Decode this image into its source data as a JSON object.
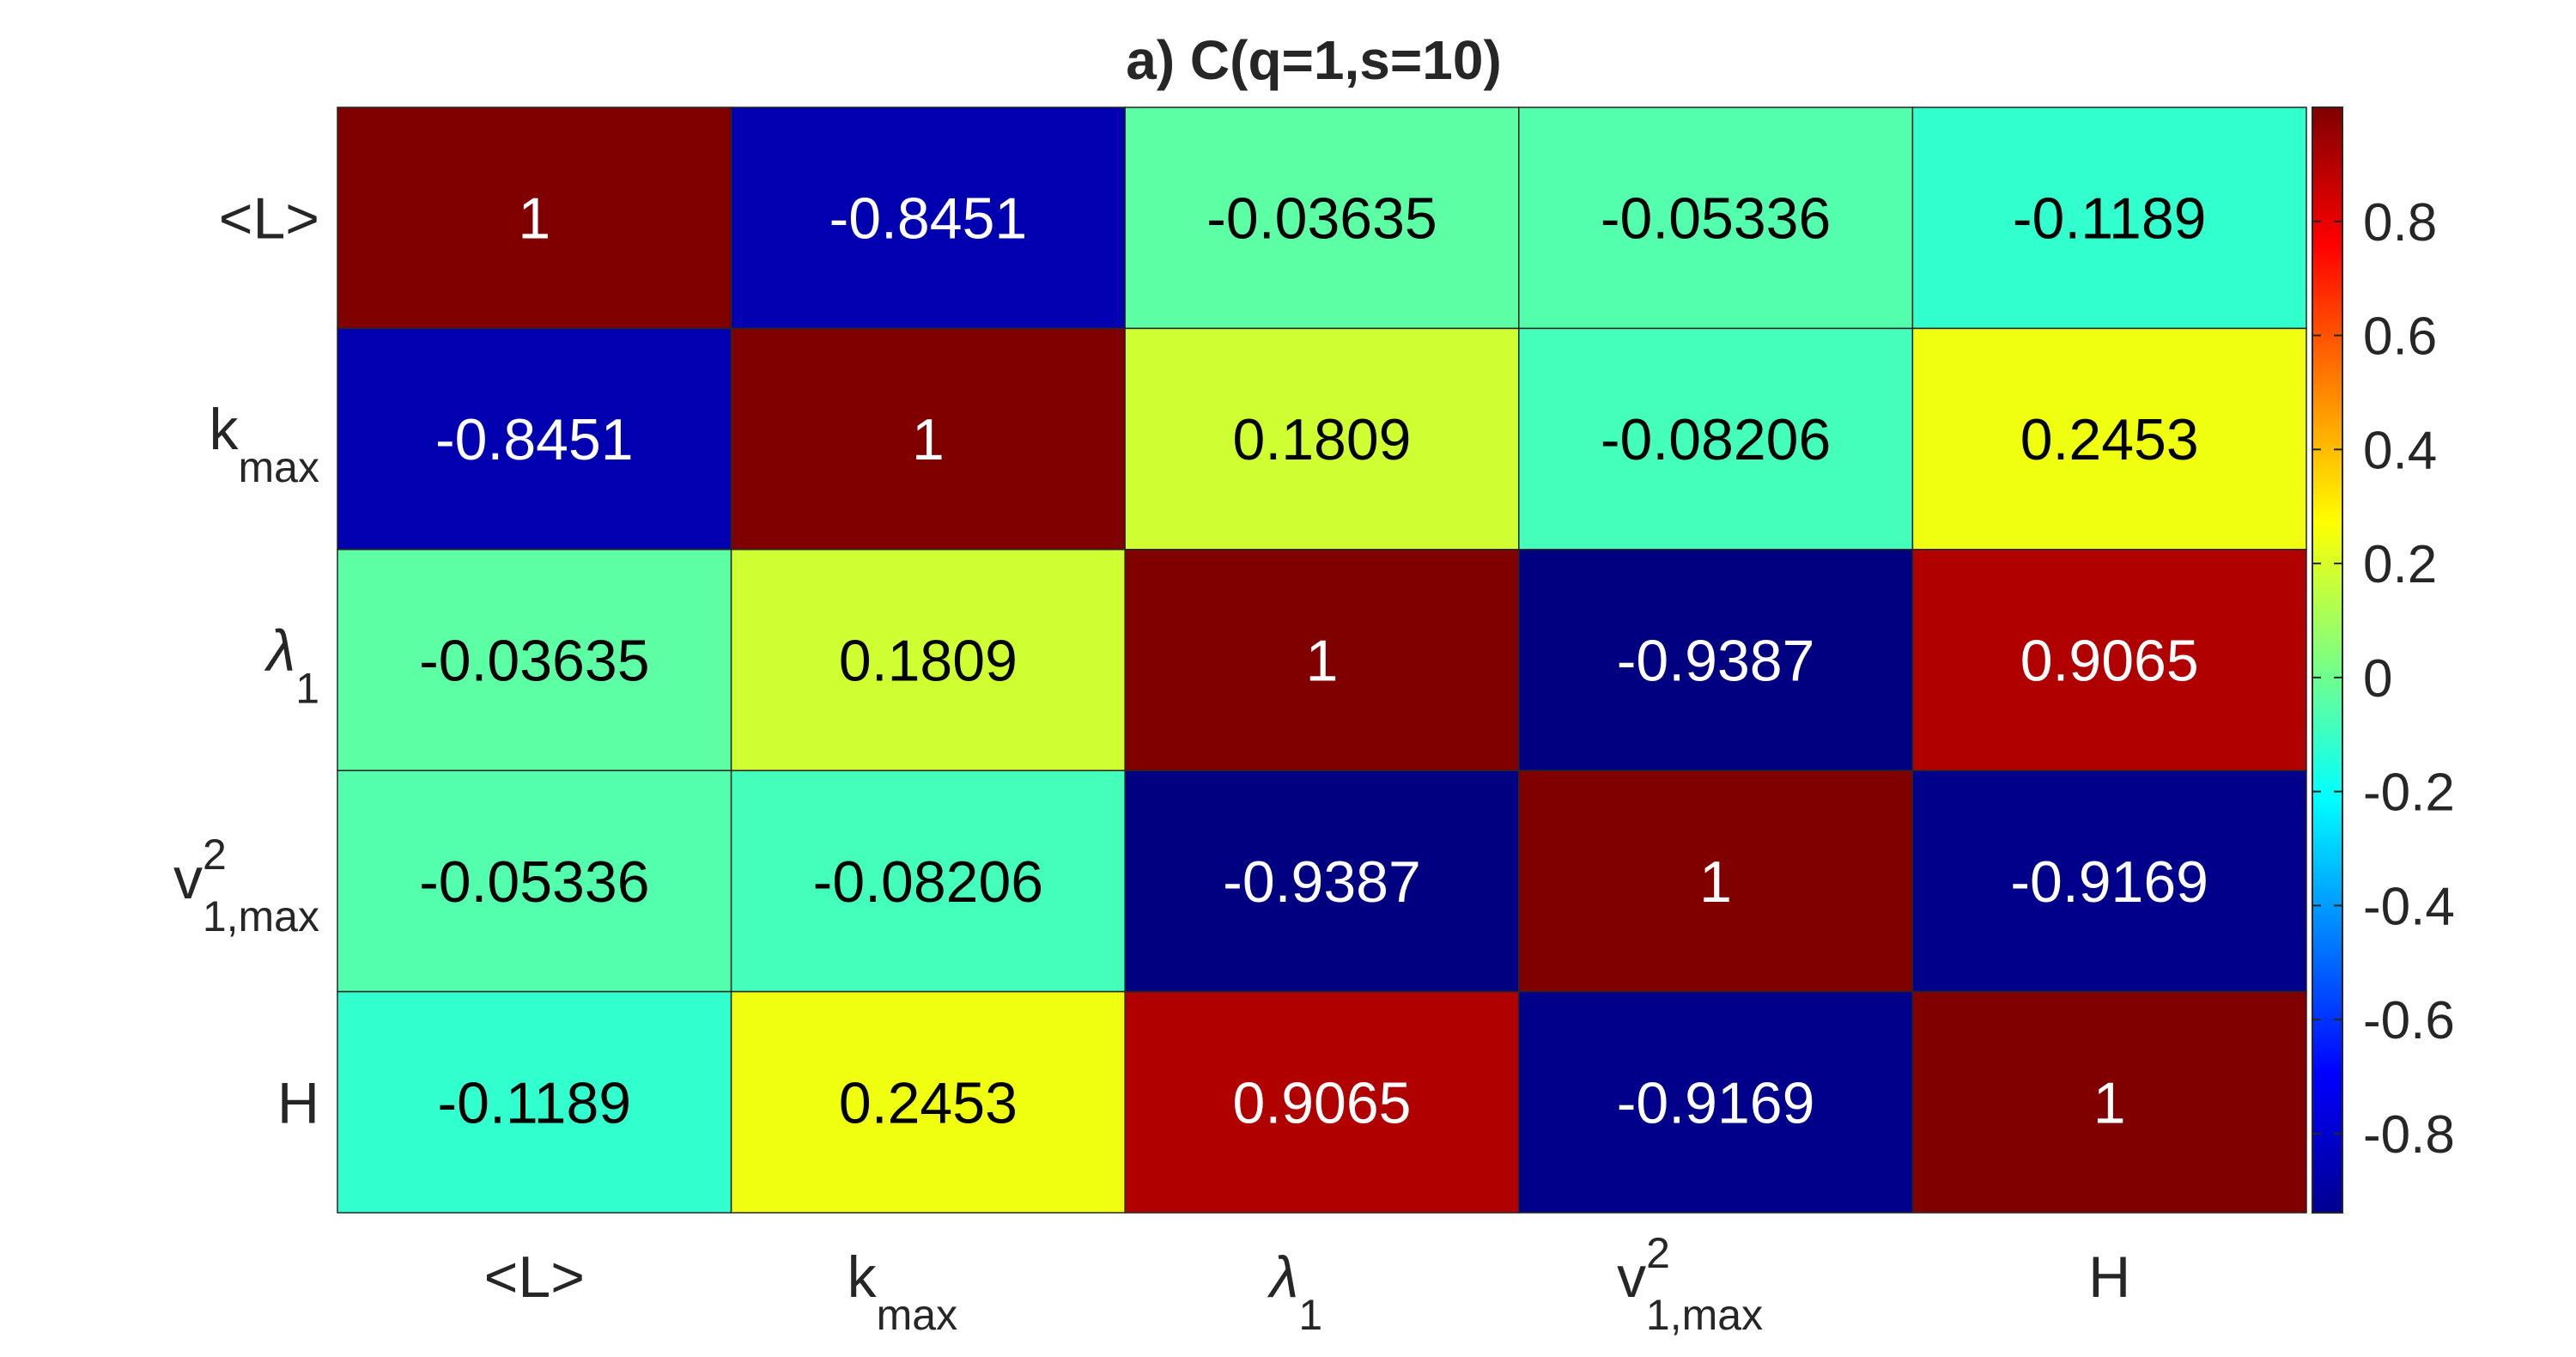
{
  "chart_data": {
    "type": "heatmap",
    "title": "a) C(q=1,s=10)",
    "rows": [
      {
        "label": {
          "base": "<L>",
          "sub": "",
          "sup": ""
        }
      },
      {
        "label": {
          "base": "k",
          "sub": "max",
          "sup": ""
        }
      },
      {
        "label": {
          "base": "λ",
          "sub": "1",
          "sup": ""
        }
      },
      {
        "label": {
          "base": "v",
          "sub": "1,max",
          "sup": "2"
        }
      },
      {
        "label": {
          "base": "H",
          "sub": "",
          "sup": ""
        }
      }
    ],
    "columns": [
      {
        "label": {
          "base": "<L>",
          "sub": "",
          "sup": ""
        }
      },
      {
        "label": {
          "base": "k",
          "sub": "max",
          "sup": ""
        }
      },
      {
        "label": {
          "base": "λ",
          "sub": "1",
          "sup": ""
        }
      },
      {
        "label": {
          "base": "v",
          "sub": "1,max",
          "sup": "2"
        }
      },
      {
        "label": {
          "base": "H",
          "sub": "",
          "sup": ""
        }
      }
    ],
    "values": [
      [
        "1",
        "-0.8451",
        "-0.03635",
        "-0.05336",
        "-0.1189"
      ],
      [
        "-0.8451",
        "1",
        "0.1809",
        "-0.08206",
        "0.2453"
      ],
      [
        "-0.03635",
        "0.1809",
        "1",
        "-0.9387",
        "0.9065"
      ],
      [
        "-0.05336",
        "-0.08206",
        "-0.9387",
        "1",
        "-0.9169"
      ],
      [
        "-0.1189",
        "0.2453",
        "0.9065",
        "-0.9169",
        "1"
      ]
    ],
    "colormap": "jet",
    "clim": [
      -0.9387,
      1
    ],
    "colorbar": {
      "position": "right",
      "ticks": [
        -0.8,
        -0.6,
        -0.4,
        -0.2,
        0,
        0.2,
        0.4,
        0.6,
        0.8
      ],
      "tick_labels": [
        "-0.8",
        "-0.6",
        "-0.4",
        "-0.2",
        "0",
        "0.2",
        "0.4",
        "0.6",
        "0.8"
      ]
    },
    "grid": true
  }
}
